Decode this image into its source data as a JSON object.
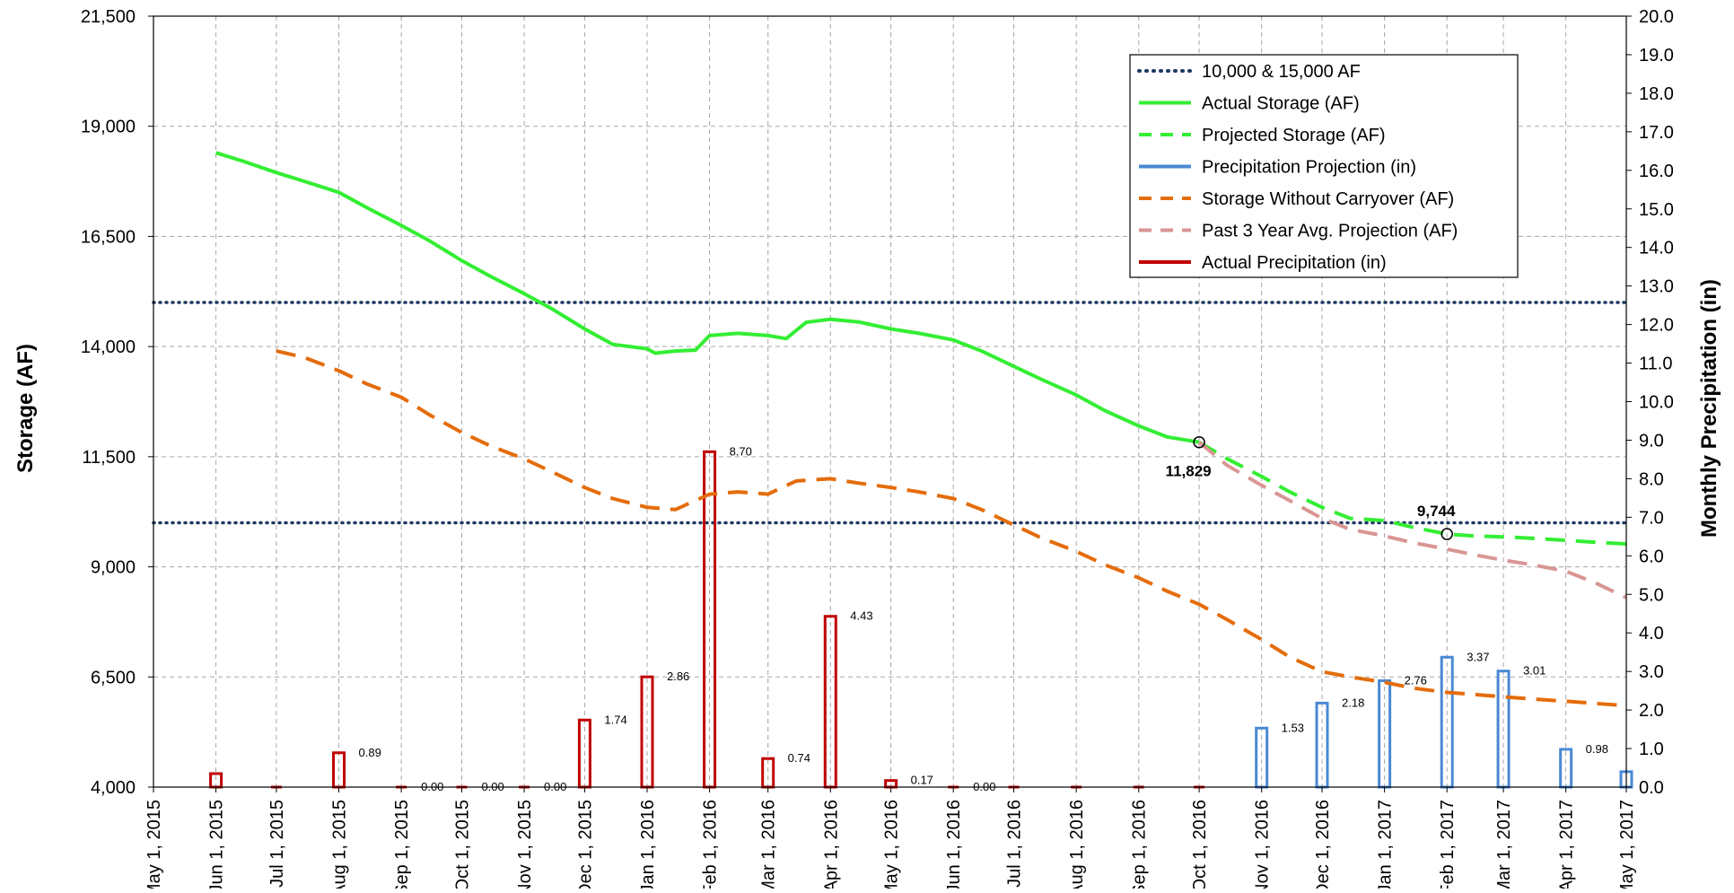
{
  "chart_data": {
    "type": "line",
    "ylabel": "Storage (AF)",
    "y2label": "Monthly Precipitation (in)",
    "ylim": [
      4000,
      21500
    ],
    "y2lim": [
      0,
      20
    ],
    "xlim": [
      "2015-05-01",
      "2017-05-01"
    ],
    "grid": true,
    "legend_position": "top-right",
    "y_ticks": [
      "4,000",
      "6,500",
      "9,000",
      "11,500",
      "14,000",
      "16,500",
      "19,000",
      "21,500"
    ],
    "y2_ticks": [
      "0.0",
      "1.0",
      "2.0",
      "3.0",
      "4.0",
      "5.0",
      "6.0",
      "7.0",
      "8.0",
      "9.0",
      "10.0",
      "11.0",
      "12.0",
      "13.0",
      "14.0",
      "15.0",
      "16.0",
      "17.0",
      "18.0",
      "19.0",
      "20.0"
    ],
    "x_ticks": [
      {
        "date": "2015-05-01",
        "label": "May 1, 2015"
      },
      {
        "date": "2015-06-01",
        "label": "Jun 1, 2015"
      },
      {
        "date": "2015-07-01",
        "label": "Jul 1, 2015"
      },
      {
        "date": "2015-08-01",
        "label": "Aug 1, 2015"
      },
      {
        "date": "2015-09-01",
        "label": "Sep 1, 2015"
      },
      {
        "date": "2015-10-01",
        "label": "Oct 1, 2015"
      },
      {
        "date": "2015-11-01",
        "label": "Nov 1, 2015"
      },
      {
        "date": "2015-12-01",
        "label": "Dec 1, 2015"
      },
      {
        "date": "2016-01-01",
        "label": "Jan 1, 2016"
      },
      {
        "date": "2016-02-01",
        "label": "Feb 1, 2016"
      },
      {
        "date": "2016-03-01",
        "label": "Mar 1, 2016"
      },
      {
        "date": "2016-04-01",
        "label": "Apr 1, 2016"
      },
      {
        "date": "2016-05-01",
        "label": "May 1, 2016"
      },
      {
        "date": "2016-06-01",
        "label": "Jun 1, 2016"
      },
      {
        "date": "2016-07-01",
        "label": "Jul 1, 2016"
      },
      {
        "date": "2016-08-01",
        "label": "Aug 1, 2016"
      },
      {
        "date": "2016-09-01",
        "label": "Sep 1, 2016"
      },
      {
        "date": "2016-10-01",
        "label": "Oct 1, 2016"
      },
      {
        "date": "2016-11-01",
        "label": "Nov 1, 2016"
      },
      {
        "date": "2016-12-01",
        "label": "Dec 1, 2016"
      },
      {
        "date": "2017-01-01",
        "label": "Jan 1, 2017"
      },
      {
        "date": "2017-02-01",
        "label": "Feb 1, 2017"
      },
      {
        "date": "2017-03-01",
        "label": "Mar 1, 2017"
      },
      {
        "date": "2017-04-01",
        "label": "Apr 1, 2017"
      },
      {
        "date": "2017-05-01",
        "label": "May 1, 2017"
      }
    ],
    "reference_lines": {
      "name": "10,000 & 15,000 AF",
      "values": [
        10000,
        15000
      ],
      "color": "#1f3864"
    },
    "series": [
      {
        "name": "Actual Storage (AF)",
        "axis": "left",
        "style": "solid",
        "color": "#33ee33",
        "points": [
          [
            "2015-06-01",
            18400
          ],
          [
            "2015-06-15",
            18200
          ],
          [
            "2015-07-01",
            17950
          ],
          [
            "2015-07-15",
            17750
          ],
          [
            "2015-08-01",
            17500
          ],
          [
            "2015-08-15",
            17150
          ],
          [
            "2015-09-01",
            16750
          ],
          [
            "2015-09-15",
            16400
          ],
          [
            "2015-10-01",
            15950
          ],
          [
            "2015-10-15",
            15600
          ],
          [
            "2015-11-01",
            15200
          ],
          [
            "2015-11-15",
            14850
          ],
          [
            "2015-12-01",
            14400
          ],
          [
            "2015-12-15",
            14050
          ],
          [
            "2016-01-01",
            13950
          ],
          [
            "2016-01-05",
            13850
          ],
          [
            "2016-01-15",
            13900
          ],
          [
            "2016-01-25",
            13920
          ],
          [
            "2016-02-01",
            14250
          ],
          [
            "2016-02-15",
            14300
          ],
          [
            "2016-03-01",
            14250
          ],
          [
            "2016-03-10",
            14180
          ],
          [
            "2016-03-20",
            14550
          ],
          [
            "2016-04-01",
            14620
          ],
          [
            "2016-04-15",
            14560
          ],
          [
            "2016-05-01",
            14400
          ],
          [
            "2016-05-15",
            14300
          ],
          [
            "2016-06-01",
            14150
          ],
          [
            "2016-06-15",
            13900
          ],
          [
            "2016-07-01",
            13550
          ],
          [
            "2016-07-15",
            13250
          ],
          [
            "2016-08-01",
            12900
          ],
          [
            "2016-08-15",
            12550
          ],
          [
            "2016-09-01",
            12200
          ],
          [
            "2016-09-15",
            11950
          ],
          [
            "2016-10-01",
            11829
          ]
        ]
      },
      {
        "name": "Projected Storage (AF)",
        "axis": "left",
        "style": "dashed",
        "color": "#33ee33",
        "points": [
          [
            "2016-10-01",
            11829
          ],
          [
            "2016-10-15",
            11450
          ],
          [
            "2016-11-01",
            11050
          ],
          [
            "2016-11-15",
            10700
          ],
          [
            "2016-12-01",
            10350
          ],
          [
            "2016-12-15",
            10100
          ],
          [
            "2017-01-01",
            10050
          ],
          [
            "2017-01-15",
            9900
          ],
          [
            "2017-02-01",
            9744
          ],
          [
            "2017-02-15",
            9700
          ],
          [
            "2017-03-01",
            9680
          ],
          [
            "2017-03-15",
            9650
          ],
          [
            "2017-04-01",
            9600
          ],
          [
            "2017-04-15",
            9560
          ],
          [
            "2017-05-01",
            9520
          ]
        ]
      },
      {
        "name": "Storage Without Carryover (AF)",
        "axis": "left",
        "style": "dashed",
        "color": "#e46c0a",
        "points": [
          [
            "2015-07-01",
            13900
          ],
          [
            "2015-07-15",
            13750
          ],
          [
            "2015-08-01",
            13450
          ],
          [
            "2015-08-15",
            13150
          ],
          [
            "2015-09-01",
            12850
          ],
          [
            "2015-09-15",
            12450
          ],
          [
            "2015-10-01",
            12050
          ],
          [
            "2015-10-15",
            11750
          ],
          [
            "2015-11-01",
            11450
          ],
          [
            "2015-11-15",
            11150
          ],
          [
            "2015-12-01",
            10800
          ],
          [
            "2015-12-15",
            10550
          ],
          [
            "2016-01-01",
            10350
          ],
          [
            "2016-01-15",
            10300
          ],
          [
            "2016-02-01",
            10650
          ],
          [
            "2016-02-15",
            10700
          ],
          [
            "2016-03-01",
            10650
          ],
          [
            "2016-03-15",
            10950
          ],
          [
            "2016-04-01",
            11000
          ],
          [
            "2016-04-15",
            10900
          ],
          [
            "2016-05-01",
            10800
          ],
          [
            "2016-05-15",
            10700
          ],
          [
            "2016-06-01",
            10550
          ],
          [
            "2016-06-15",
            10300
          ],
          [
            "2016-07-01",
            9950
          ],
          [
            "2016-07-15",
            9650
          ],
          [
            "2016-08-01",
            9350
          ],
          [
            "2016-08-15",
            9050
          ],
          [
            "2016-09-01",
            8750
          ],
          [
            "2016-09-15",
            8450
          ],
          [
            "2016-10-01",
            8150
          ],
          [
            "2016-10-15",
            7800
          ],
          [
            "2016-11-01",
            7350
          ],
          [
            "2016-11-15",
            6950
          ],
          [
            "2016-12-01",
            6620
          ],
          [
            "2016-12-15",
            6500
          ],
          [
            "2017-01-01",
            6380
          ],
          [
            "2017-01-15",
            6250
          ],
          [
            "2017-02-01",
            6150
          ],
          [
            "2017-02-15",
            6100
          ],
          [
            "2017-03-01",
            6050
          ],
          [
            "2017-03-15",
            6000
          ],
          [
            "2017-04-01",
            5950
          ],
          [
            "2017-04-15",
            5900
          ],
          [
            "2017-05-01",
            5850
          ]
        ]
      },
      {
        "name": "Past 3 Year Avg. Projection (AF)",
        "axis": "left",
        "style": "dashed",
        "color": "#d99694",
        "points": [
          [
            "2016-10-01",
            11829
          ],
          [
            "2016-10-15",
            11300
          ],
          [
            "2016-11-01",
            10850
          ],
          [
            "2016-11-15",
            10500
          ],
          [
            "2016-12-01",
            10100
          ],
          [
            "2016-12-15",
            9850
          ],
          [
            "2017-01-01",
            9700
          ],
          [
            "2017-01-15",
            9550
          ],
          [
            "2017-02-01",
            9400
          ],
          [
            "2017-02-15",
            9270
          ],
          [
            "2017-03-01",
            9150
          ],
          [
            "2017-03-15",
            9050
          ],
          [
            "2017-04-01",
            8900
          ],
          [
            "2017-04-15",
            8650
          ],
          [
            "2017-05-01",
            8300
          ]
        ]
      }
    ],
    "bar_series": [
      {
        "name": "Actual Precipitation (in)",
        "axis": "right",
        "color": "#c00000",
        "bars": [
          {
            "date": "2015-06-01",
            "value": 0.35,
            "label": ""
          },
          {
            "date": "2015-07-01",
            "value": 0.0,
            "label": ""
          },
          {
            "date": "2015-08-01",
            "value": 0.89,
            "label": "0.89"
          },
          {
            "date": "2015-09-01",
            "value": 0.0,
            "label": "0.00"
          },
          {
            "date": "2015-10-01",
            "value": 0.0,
            "label": "0.00"
          },
          {
            "date": "2015-11-01",
            "value": 0.0,
            "label": "0.00"
          },
          {
            "date": "2015-12-01",
            "value": 1.74,
            "label": "1.74"
          },
          {
            "date": "2016-01-01",
            "value": 2.86,
            "label": "2.86"
          },
          {
            "date": "2016-02-01",
            "value": 8.7,
            "label": "8.70"
          },
          {
            "date": "2016-03-01",
            "value": 0.74,
            "label": "0.74"
          },
          {
            "date": "2016-04-01",
            "value": 4.43,
            "label": "4.43"
          },
          {
            "date": "2016-05-01",
            "value": 0.17,
            "label": "0.17"
          },
          {
            "date": "2016-06-01",
            "value": 0.0,
            "label": "0.00"
          },
          {
            "date": "2016-07-01",
            "value": 0.0,
            "label": ""
          },
          {
            "date": "2016-08-01",
            "value": 0.0,
            "label": ""
          },
          {
            "date": "2016-09-01",
            "value": 0.0,
            "label": ""
          },
          {
            "date": "2016-10-01",
            "value": 0.0,
            "label": ""
          }
        ]
      },
      {
        "name": "Precipitation Projection (in)",
        "axis": "right",
        "color": "#4a89d4",
        "bars": [
          {
            "date": "2016-11-01",
            "value": 1.53,
            "label": "1.53"
          },
          {
            "date": "2016-12-01",
            "value": 2.18,
            "label": "2.18"
          },
          {
            "date": "2017-01-01",
            "value": 2.76,
            "label": "2.76"
          },
          {
            "date": "2017-02-01",
            "value": 3.37,
            "label": "3.37"
          },
          {
            "date": "2017-03-01",
            "value": 3.01,
            "label": "3.01"
          },
          {
            "date": "2017-04-01",
            "value": 0.98,
            "label": "0.98"
          },
          {
            "date": "2017-05-01",
            "value": 0.4,
            "label": ""
          }
        ]
      }
    ],
    "annotations": [
      {
        "date": "2016-10-01",
        "value": 11829,
        "label": "11,829",
        "position": "below"
      },
      {
        "date": "2017-02-01",
        "value": 9744,
        "label": "9,744",
        "position": "above"
      }
    ],
    "legend": [
      {
        "label": "10,000 & 15,000 AF",
        "style": "dotted",
        "color": "#1f3864"
      },
      {
        "label": "Actual Storage (AF)",
        "style": "solid",
        "color": "#33ee33"
      },
      {
        "label": "Projected Storage (AF)",
        "style": "dashed",
        "color": "#33ee33"
      },
      {
        "label": "Precipitation Projection (in)",
        "style": "solid",
        "color": "#4a89d4"
      },
      {
        "label": "Storage Without Carryover (AF)",
        "style": "dashed",
        "color": "#e46c0a"
      },
      {
        "label": "Past 3 Year Avg. Projection (AF)",
        "style": "dashed",
        "color": "#d99694"
      },
      {
        "label": "Actual Precipitation (in)",
        "style": "solid",
        "color": "#c00000"
      }
    ]
  }
}
